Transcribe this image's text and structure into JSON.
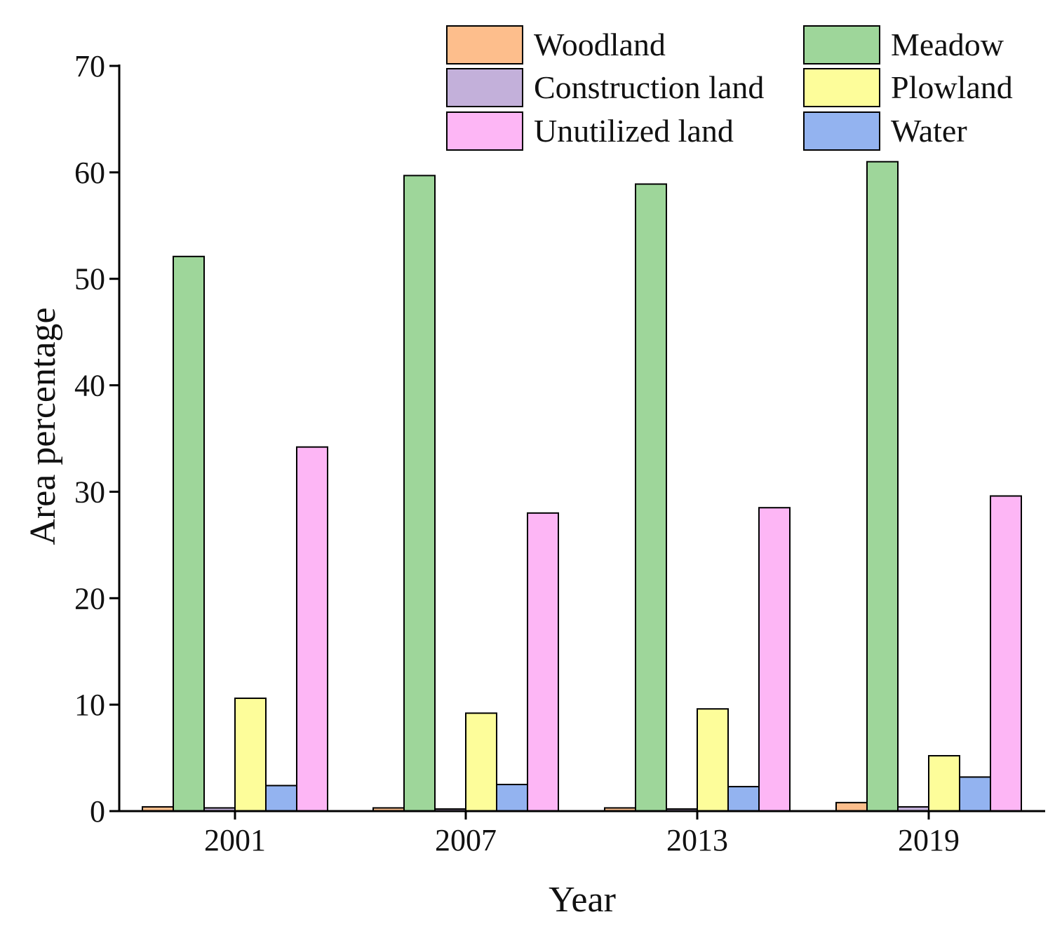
{
  "chart_data": {
    "type": "bar",
    "title": "",
    "xlabel": "Year",
    "ylabel": "Area percentage",
    "categories": [
      "2001",
      "2007",
      "2013",
      "2019"
    ],
    "ylim": [
      0,
      70
    ],
    "yticks": [
      0,
      10,
      20,
      30,
      40,
      50,
      60,
      70
    ],
    "grid": false,
    "legend_position": "top-right",
    "series": [
      {
        "name": "Woodland",
        "color": "#FDBE8C",
        "values": [
          0.4,
          0.3,
          0.3,
          0.8
        ]
      },
      {
        "name": "Meadow",
        "color": "#9ED69A",
        "values": [
          52.1,
          59.7,
          58.9,
          61.0
        ]
      },
      {
        "name": "Construction land",
        "color": "#C3B0DA",
        "values": [
          0.3,
          0.2,
          0.2,
          0.4
        ]
      },
      {
        "name": "Plowland",
        "color": "#FDFD9A",
        "values": [
          10.6,
          9.2,
          9.6,
          5.2
        ]
      },
      {
        "name": "Water",
        "color": "#93B3F0",
        "values": [
          2.4,
          2.5,
          2.3,
          3.2
        ]
      },
      {
        "name": "Unutilized land",
        "color": "#FDB6F5",
        "values": [
          34.2,
          28.0,
          28.5,
          29.6
        ]
      }
    ],
    "legend_order": [
      "Woodland",
      "Meadow",
      "Construction land",
      "Plowland",
      "Unutilized land",
      "Water"
    ]
  }
}
